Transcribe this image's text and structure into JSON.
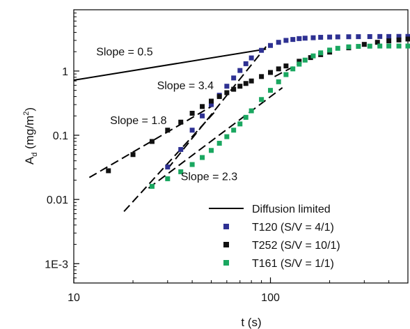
{
  "chart_data": {
    "type": "scatter",
    "xlabel": "t (s)",
    "ylabel_main": "A",
    "ylabel_sub": "d",
    "ylabel_rest": " (mg/m",
    "ylabel_sup": "2",
    "ylabel_end": ")",
    "x_scale": "log",
    "y_scale": "log",
    "xlim": [
      10,
      500
    ],
    "ylim": [
      0.0005,
      9
    ],
    "grid": false,
    "legend_position": "bottom-right",
    "x_ticks": [
      {
        "value": 10,
        "label": "10"
      },
      {
        "value": 100,
        "label": "100"
      }
    ],
    "y_ticks": [
      {
        "value": 0.001,
        "label": "1E-3"
      },
      {
        "value": 0.01,
        "label": "0.01"
      },
      {
        "value": 0.1,
        "label": "0.1"
      },
      {
        "value": 1,
        "label": "1"
      }
    ],
    "series": [
      {
        "name": "T120 (S/V = 4/1)",
        "color": "#2e3192",
        "x": [
          30,
          35,
          40,
          45,
          50,
          55,
          60,
          65,
          70,
          75,
          80,
          90,
          100,
          110,
          120,
          130,
          140,
          150,
          165,
          180,
          200,
          220,
          250,
          280,
          320,
          360,
          400,
          450,
          500
        ],
        "y": [
          0.032,
          0.06,
          0.12,
          0.2,
          0.3,
          0.42,
          0.58,
          0.78,
          1.02,
          1.3,
          1.6,
          2.1,
          2.5,
          2.8,
          3.0,
          3.1,
          3.2,
          3.25,
          3.3,
          3.35,
          3.38,
          3.4,
          3.42,
          3.43,
          3.44,
          3.45,
          3.45,
          3.46,
          3.46
        ]
      },
      {
        "name": "T252 (S/V = 10/1)",
        "color": "#111111",
        "x": [
          15,
          20,
          25,
          30,
          35,
          40,
          45,
          50,
          55,
          60,
          65,
          70,
          75,
          80,
          90,
          100,
          110,
          120,
          140,
          160,
          180,
          200,
          250,
          300,
          350,
          400,
          450,
          500
        ],
        "y": [
          0.028,
          0.05,
          0.08,
          0.12,
          0.16,
          0.22,
          0.28,
          0.34,
          0.4,
          0.46,
          0.52,
          0.58,
          0.64,
          0.7,
          0.82,
          0.95,
          1.08,
          1.2,
          1.42,
          1.62,
          1.8,
          1.97,
          2.3,
          2.6,
          2.8,
          2.95,
          3.05,
          3.15
        ]
      },
      {
        "name": "T161 (S/V = 1/1)",
        "color": "#1aa760",
        "x": [
          25,
          30,
          35,
          40,
          45,
          50,
          55,
          60,
          65,
          70,
          75,
          80,
          90,
          100,
          110,
          120,
          130,
          140,
          150,
          165,
          180,
          200,
          220,
          250,
          280,
          320,
          360,
          400,
          450,
          500
        ],
        "y": [
          0.016,
          0.021,
          0.027,
          0.035,
          0.045,
          0.058,
          0.075,
          0.095,
          0.12,
          0.15,
          0.19,
          0.24,
          0.36,
          0.5,
          0.68,
          0.88,
          1.08,
          1.28,
          1.48,
          1.72,
          1.92,
          2.12,
          2.26,
          2.38,
          2.42,
          2.44,
          2.45,
          2.45,
          2.45,
          2.45
        ]
      }
    ],
    "reference_lines": [
      {
        "name": "Diffusion limited",
        "style": "solid",
        "x": [
          10,
          95
        ],
        "y": [
          0.72,
          2.2
        ]
      },
      {
        "name": "fit-1.8",
        "style": "dashed",
        "x": [
          12,
          50
        ],
        "y": [
          0.022,
          0.28
        ]
      },
      {
        "name": "fit-3.4",
        "style": "dashed",
        "x": [
          30,
          95
        ],
        "y": [
          0.03,
          2.4
        ]
      },
      {
        "name": "fit-3.4b",
        "style": "dashed",
        "x": [
          18,
          52
        ],
        "y": [
          0.0065,
          0.23
        ]
      },
      {
        "name": "fit-2.3",
        "style": "dashed",
        "x": [
          24,
          115
        ],
        "y": [
          0.015,
          0.55
        ]
      },
      {
        "name": "fit-2.3b",
        "style": "dashed",
        "x": [
          105,
          140
        ],
        "y": [
          0.82,
          1.3
        ]
      }
    ],
    "annotations": [
      {
        "text": "Slope = 0.5",
        "x": 13,
        "y": 1.75
      },
      {
        "text": "Slope = 3.4",
        "x": 26.5,
        "y": 0.52
      },
      {
        "text": "Slope = 1.8",
        "x": 15.3,
        "y": 0.15
      },
      {
        "text": "Slope = 2.3",
        "x": 35,
        "y": 0.02
      }
    ]
  }
}
